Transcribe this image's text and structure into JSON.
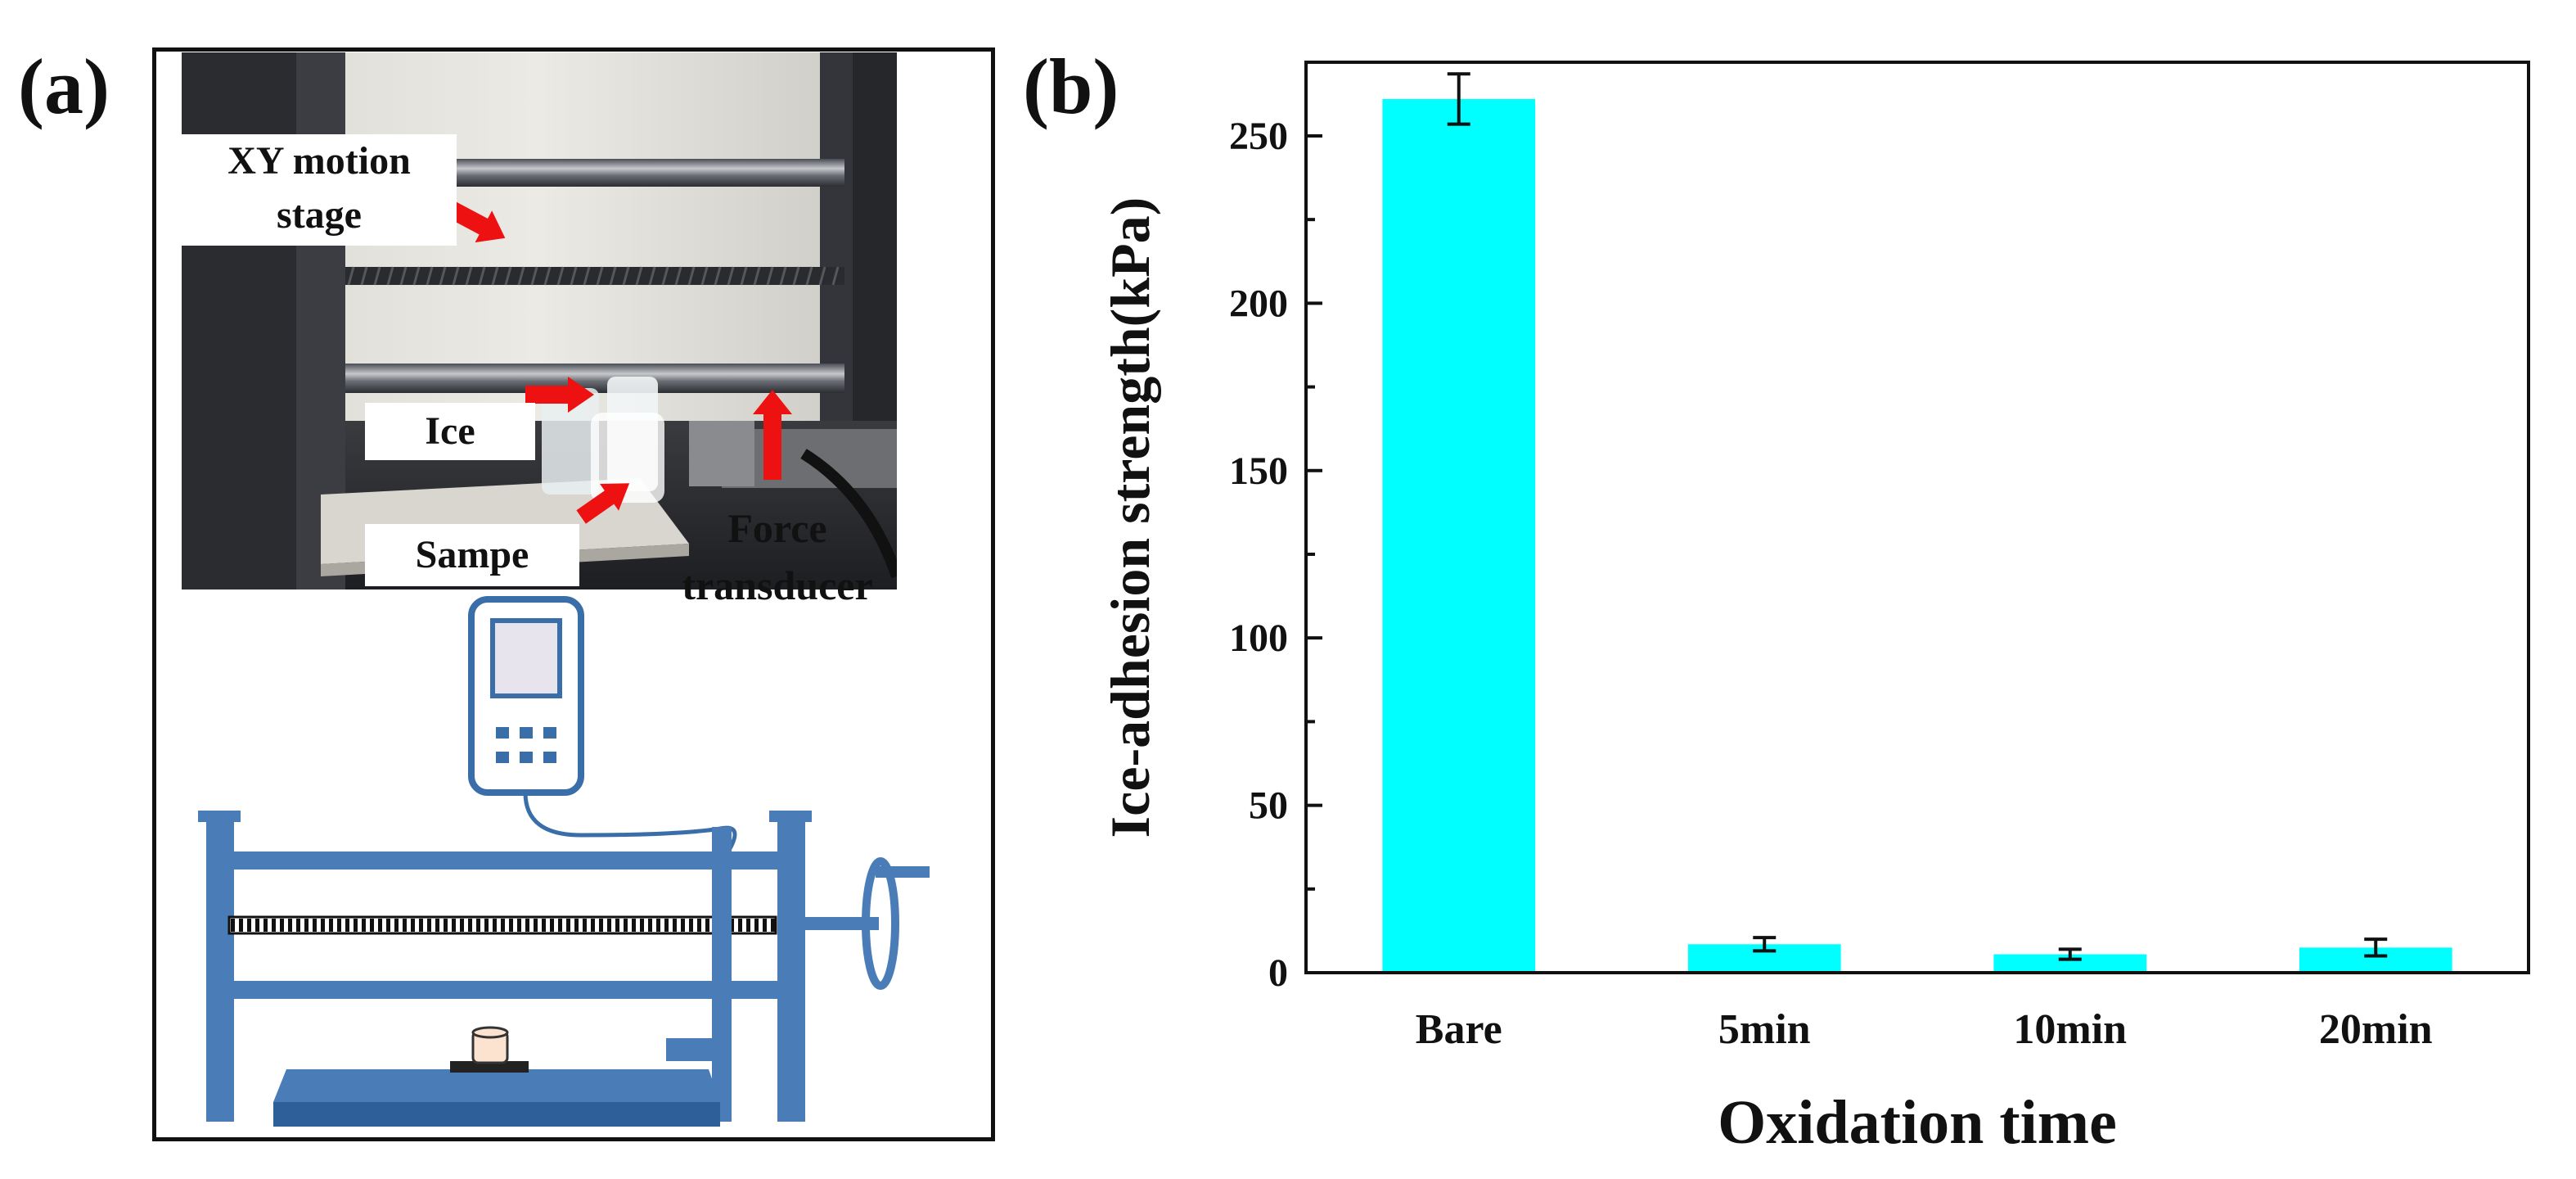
{
  "panel_a": {
    "label": "(a)",
    "photo_labels": {
      "xy_line1": "XY motion",
      "xy_line2": "stage",
      "ice": "Ice",
      "sample": "Sampe"
    },
    "force_line1": "Force",
    "force_line2": "transducer",
    "colors": {
      "arrow": "#ee1111",
      "frame": "#4a7db8",
      "frame_dark": "#2f5f98"
    }
  },
  "panel_b": {
    "label": "(b)"
  },
  "chart_data": {
    "type": "bar",
    "categories": [
      "Bare",
      "5min",
      "10min",
      "20min"
    ],
    "values": [
      261,
      8.5,
      5.5,
      7.5
    ],
    "errors": [
      7.5,
      2.0,
      1.5,
      2.5
    ],
    "title": "",
    "xlabel": "Oxidation time",
    "ylabel": "Ice-adhesion strength(kPa)",
    "ylim": [
      0,
      272
    ],
    "yticks": [
      0,
      50,
      100,
      150,
      200,
      250
    ],
    "bar_color": "#00ffff",
    "grid": false,
    "legend": "none"
  }
}
